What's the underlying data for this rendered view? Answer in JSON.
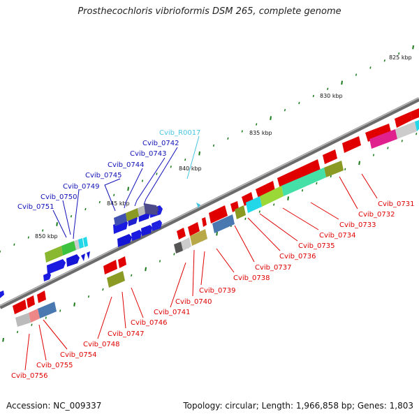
{
  "title": "Prosthecochloris vibrioformis DSM 265, complete genome",
  "footer": {
    "accession": "Accession: NC_009337",
    "summary": "Topology: circular; Length: 1,966,858 bp; Genes: 1,803"
  },
  "scale_labels": [
    "825 kbp",
    "830 kbp",
    "835 kbp",
    "840 kbp",
    "845 kbp",
    "850 kbp"
  ],
  "genes_top": [
    {
      "label": "Cvib_R0017",
      "color": "#47c5e0"
    },
    {
      "label": "Cvib_0742",
      "color": "#1010b8"
    },
    {
      "label": "Cvib_0743",
      "color": "#1010b8"
    },
    {
      "label": "Cvib_0744",
      "color": "#1010b8"
    },
    {
      "label": "Cvib_0745",
      "color": "#1010b8"
    },
    {
      "label": "Cvib_0749",
      "color": "#1010b8"
    },
    {
      "label": "Cvib_0750",
      "color": "#1010b8"
    },
    {
      "label": "Cvib_0751",
      "color": "#1010b8"
    }
  ],
  "genes_bottom": [
    {
      "label": "Cvib_0731"
    },
    {
      "label": "Cvib_0732"
    },
    {
      "label": "Cvib_0733"
    },
    {
      "label": "Cvib_0734"
    },
    {
      "label": "Cvib_0735"
    },
    {
      "label": "Cvib_0736"
    },
    {
      "label": "Cvib_0737"
    },
    {
      "label": "Cvib_0738"
    },
    {
      "label": "Cvib_0739"
    },
    {
      "label": "Cvib_0740"
    },
    {
      "label": "Cvib_0741"
    },
    {
      "label": "Cvib_0746"
    },
    {
      "label": "Cvib_0747"
    },
    {
      "label": "Cvib_0748"
    },
    {
      "label": "Cvib_0754"
    },
    {
      "label": "Cvib_0755"
    },
    {
      "label": "Cvib_0756"
    }
  ],
  "colors": {
    "forward_strand": "#1010c8",
    "reverse_strand": "#e00000",
    "rna_label": "#47c5e0",
    "backbone": "#8a8a8a",
    "ticks": "#1a7a1a"
  }
}
